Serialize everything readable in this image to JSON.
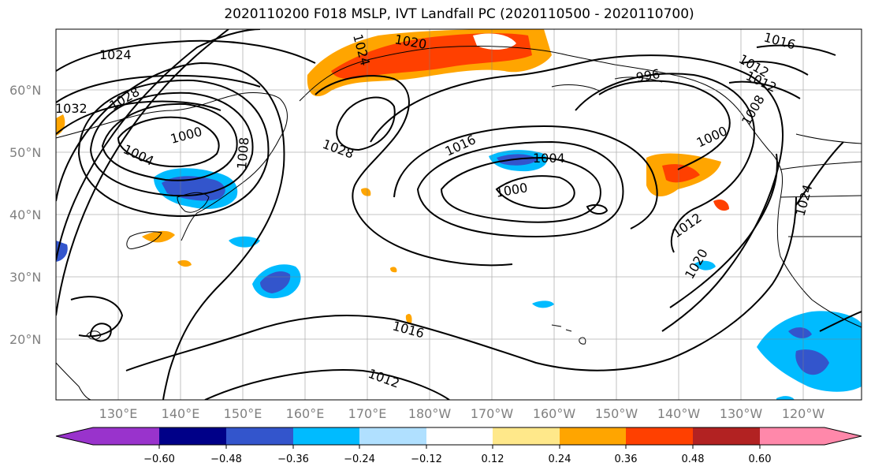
{
  "title": "2020110200 F018 MSLP, IVT Landfall PC (2020110500 - 2020110700)",
  "map": {
    "lat_ticks": [
      "60°N",
      "50°N",
      "40°N",
      "30°N",
      "20°N"
    ],
    "lon_ticks": [
      "130°E",
      "140°E",
      "150°E",
      "160°E",
      "170°E",
      "180°W",
      "170°W",
      "160°W",
      "150°W",
      "140°W",
      "130°W",
      "120°W"
    ],
    "grid": true,
    "isobar_labels": [
      "1024",
      "1032",
      "1028",
      "1020",
      "1024",
      "1000",
      "1004",
      "1008",
      "1028",
      "1016",
      "1004",
      "1000",
      "996",
      "1000",
      "1012",
      "1012",
      "1016",
      "1012",
      "1020",
      "1024",
      "1016",
      "1012",
      "1008"
    ]
  },
  "colorbar": {
    "ticks": [
      "−0.60",
      "−0.48",
      "−0.36",
      "−0.24",
      "−0.12",
      "0.12",
      "0.24",
      "0.36",
      "0.48",
      "0.60"
    ],
    "colors": [
      "#9933cc",
      "#000088",
      "#3355cc",
      "#00bbff",
      "#b0e0ff",
      "#ffffff",
      "#ffe88a",
      "#ffa500",
      "#ff4000",
      "#b22222",
      "#ff88aa"
    ]
  }
}
